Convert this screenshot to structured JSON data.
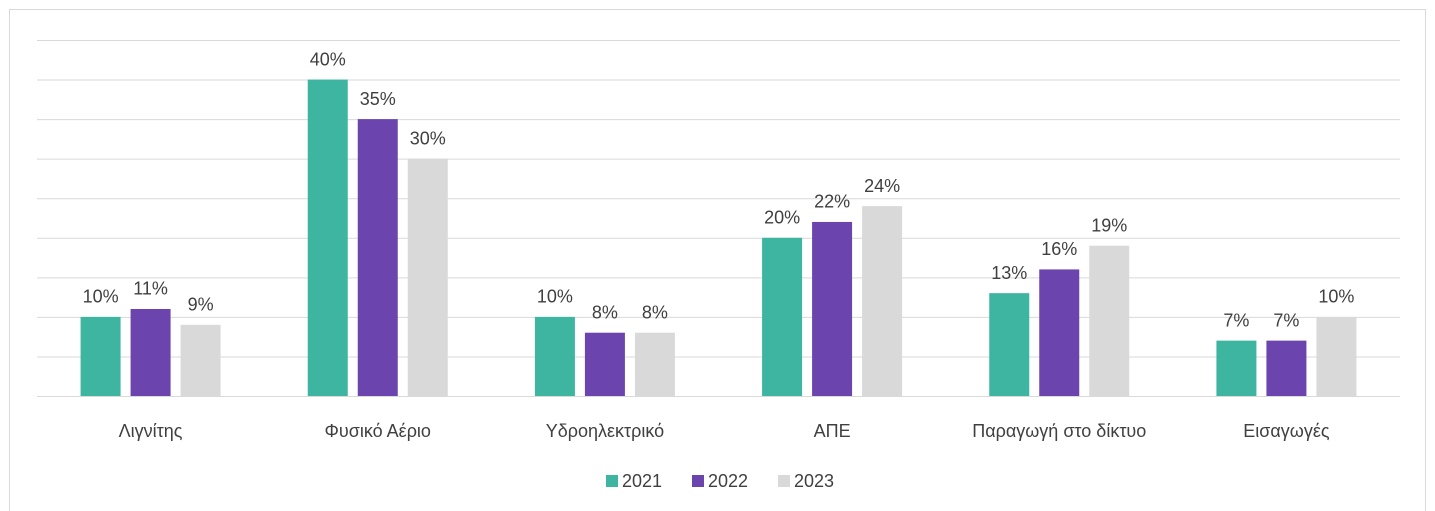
{
  "chart_data": {
    "type": "bar",
    "categories": [
      "Λιγνίτης",
      "Φυσικό Αέριο",
      "Υδροηλεκτρικό",
      "ΑΠΕ",
      "Παραγωγή στο δίκτυο",
      "Εισαγωγές"
    ],
    "series": [
      {
        "name": "2021",
        "color": "#3db5a0",
        "values": [
          10,
          40,
          10,
          20,
          13,
          7
        ],
        "value_labels": [
          "10%",
          "40%",
          "10%",
          "20%",
          "13%",
          "7%"
        ]
      },
      {
        "name": "2022",
        "color": "#6b44ad",
        "values": [
          11,
          35,
          8,
          22,
          16,
          7
        ],
        "value_labels": [
          "11%",
          "35%",
          "8%",
          "22%",
          "16%",
          "7%"
        ]
      },
      {
        "name": "2023",
        "color": "#d9d9d9",
        "values": [
          9,
          30,
          8,
          24,
          19,
          10
        ],
        "value_labels": [
          "9%",
          "30%",
          "8%",
          "24%",
          "19%",
          "10%"
        ]
      }
    ],
    "ylim": [
      0,
      45
    ],
    "yticks": [
      0,
      5,
      10,
      15,
      20,
      25,
      30,
      35,
      40,
      45
    ],
    "grid": true,
    "legend": "bottom"
  }
}
